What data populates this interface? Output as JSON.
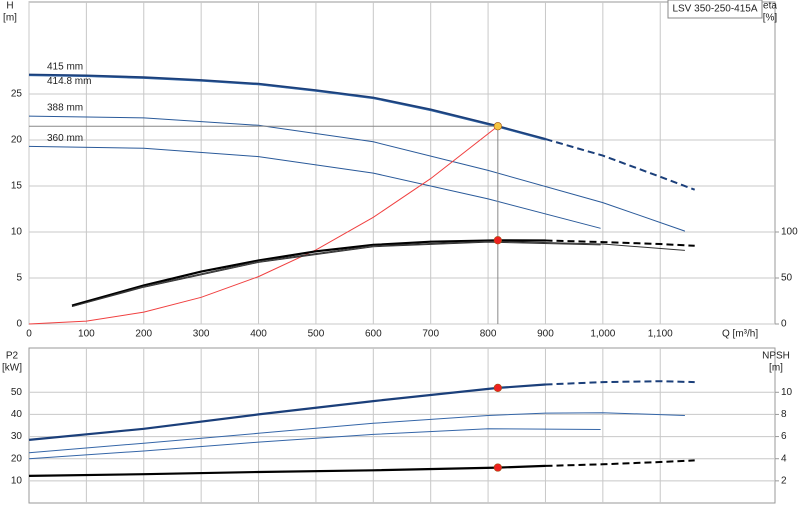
{
  "chart_data": [
    {
      "type": "line",
      "title": "LSV 350-250-415A",
      "xlabel": "Q [m³/h]",
      "ylabel": [
        "H",
        "[m]"
      ],
      "y2label": [
        "eta",
        "[%]"
      ],
      "xlim": [
        0,
        1300
      ],
      "xticks": [
        0,
        100,
        200,
        300,
        400,
        500,
        600,
        700,
        800,
        900,
        {
          "value": 1000,
          "label": "1,000"
        },
        {
          "value": 1100,
          "label": "1,100"
        }
      ],
      "ylim": [
        0,
        35
      ],
      "yticks": [
        0,
        5,
        10,
        15,
        20,
        25
      ],
      "y2lim": [
        0,
        350
      ],
      "y2ticks": [
        0,
        50,
        100
      ],
      "grid": true,
      "xtick_labels": true,
      "series": [
        {
          "name": "415 mm",
          "color": "#1b3f7a",
          "style": "thick",
          "x": [
            0,
            100,
            200,
            300,
            400,
            500,
            600,
            700,
            817,
            900
          ],
          "values": [
            27.1,
            27.0,
            26.8,
            26.5,
            26.1,
            25.4,
            24.6,
            23.3,
            21.5,
            20.1
          ]
        },
        {
          "name": "414.8 mm",
          "color": "#2a5a9a",
          "style": "thin",
          "label_side": "below",
          "x": [
            0,
            100,
            200,
            300,
            400,
            500,
            600,
            700,
            817,
            900
          ],
          "values": [
            27.0,
            26.9,
            26.7,
            26.4,
            26.0,
            25.3,
            24.5,
            23.2,
            21.4,
            20.0
          ]
        },
        {
          "color": "#1b3f7a",
          "style": "dashed",
          "x": [
            900,
            1000,
            1100,
            1160
          ],
          "values": [
            20.1,
            18.3,
            16.0,
            14.6
          ]
        },
        {
          "name": "388 mm",
          "color": "#2a5a9a",
          "style": "thin",
          "x": [
            0,
            200,
            400,
            600,
            800,
            1000,
            1143
          ],
          "values": [
            22.6,
            22.4,
            21.6,
            19.8,
            16.7,
            13.2,
            10.1
          ]
        },
        {
          "name": "360 mm",
          "color": "#2a5a9a",
          "style": "thin",
          "x": [
            0,
            200,
            400,
            600,
            800,
            996
          ],
          "values": [
            19.3,
            19.1,
            18.2,
            16.4,
            13.6,
            10.4
          ]
        },
        {
          "color": "#f04040",
          "style": "thin",
          "x": [
            0,
            100,
            200,
            300,
            400,
            500,
            600,
            700,
            817
          ],
          "values": [
            0,
            0.32,
            1.29,
            2.9,
            5.15,
            8.05,
            11.6,
            15.8,
            21.5
          ]
        },
        {
          "color": "#000000",
          "style": "thick",
          "axis": "y2",
          "x": [
            75,
            200,
            300,
            400,
            500,
            600,
            700,
            817,
            900
          ],
          "values": [
            20,
            42,
            57,
            69,
            79,
            86,
            89.5,
            91,
            90.8
          ]
        },
        {
          "color": "#000000",
          "style": "dashed",
          "axis": "y2",
          "x": [
            900,
            1000,
            1100,
            1160
          ],
          "values": [
            90.8,
            89,
            87,
            85
          ]
        },
        {
          "color": "#333333",
          "style": "thin",
          "axis": "y2",
          "x": [
            75,
            200,
            400,
            600,
            800,
            1000,
            1143
          ],
          "values": [
            19,
            41,
            68,
            85,
            90,
            87,
            80
          ]
        },
        {
          "color": "#333333",
          "style": "thin",
          "axis": "y2",
          "x": [
            75,
            200,
            400,
            600,
            800,
            996
          ],
          "values": [
            19,
            40,
            67,
            84,
            89,
            86
          ]
        }
      ],
      "markers": [
        {
          "x": 817,
          "y": 21.5,
          "color": "#f5c542",
          "guide": true
        },
        {
          "x": 817,
          "y": 91,
          "axis": "y2",
          "color": "#ee2020"
        }
      ]
    },
    {
      "type": "line",
      "ylabel": [
        "P2",
        "[kW]"
      ],
      "y2label": [
        "NPSH",
        "[m]"
      ],
      "xlim": [
        0,
        1300
      ],
      "xticks": [
        100,
        200,
        300,
        400,
        500,
        600,
        700,
        800,
        900,
        1000,
        1100
      ],
      "ylim": [
        0,
        70
      ],
      "yticks": [
        10,
        20,
        30,
        40,
        50
      ],
      "y2lim": [
        0,
        14
      ],
      "y2ticks": [
        2,
        4,
        6,
        8,
        10
      ],
      "grid": true,
      "xtick_labels": false,
      "series": [
        {
          "color": "#1b3f7a",
          "style": "thick",
          "x": [
            0,
            200,
            400,
            600,
            817,
            900
          ],
          "values": [
            28.5,
            33.5,
            40,
            46,
            52,
            53.5
          ]
        },
        {
          "color": "#1b3f7a",
          "style": "dashed",
          "x": [
            900,
            1000,
            1100,
            1160
          ],
          "values": [
            53.5,
            54.6,
            55,
            54.6
          ]
        },
        {
          "color": "#3566a8",
          "style": "thin",
          "x": [
            0,
            200,
            400,
            600,
            800,
            900,
            1000,
            1143
          ],
          "values": [
            22.7,
            27,
            31.5,
            36,
            39.5,
            40.6,
            40.8,
            39.5
          ]
        },
        {
          "color": "#3566a8",
          "style": "thin",
          "x": [
            0,
            200,
            400,
            600,
            800,
            996
          ],
          "values": [
            20,
            23.5,
            27.5,
            31,
            33.5,
            33.2
          ]
        },
        {
          "color": "#000000",
          "style": "thick",
          "axis": "y2",
          "x": [
            0,
            200,
            400,
            600,
            817,
            900
          ],
          "values": [
            2.45,
            2.6,
            2.8,
            2.95,
            3.2,
            3.35
          ]
        },
        {
          "color": "#000000",
          "style": "dashed",
          "axis": "y2",
          "x": [
            900,
            1000,
            1100,
            1160
          ],
          "values": [
            3.35,
            3.5,
            3.7,
            3.85
          ]
        }
      ],
      "markers": [
        {
          "x": 817,
          "y": 52,
          "color": "#ee2020"
        },
        {
          "x": 817,
          "y": 3.2,
          "axis": "y2",
          "color": "#ee2020"
        }
      ]
    }
  ]
}
